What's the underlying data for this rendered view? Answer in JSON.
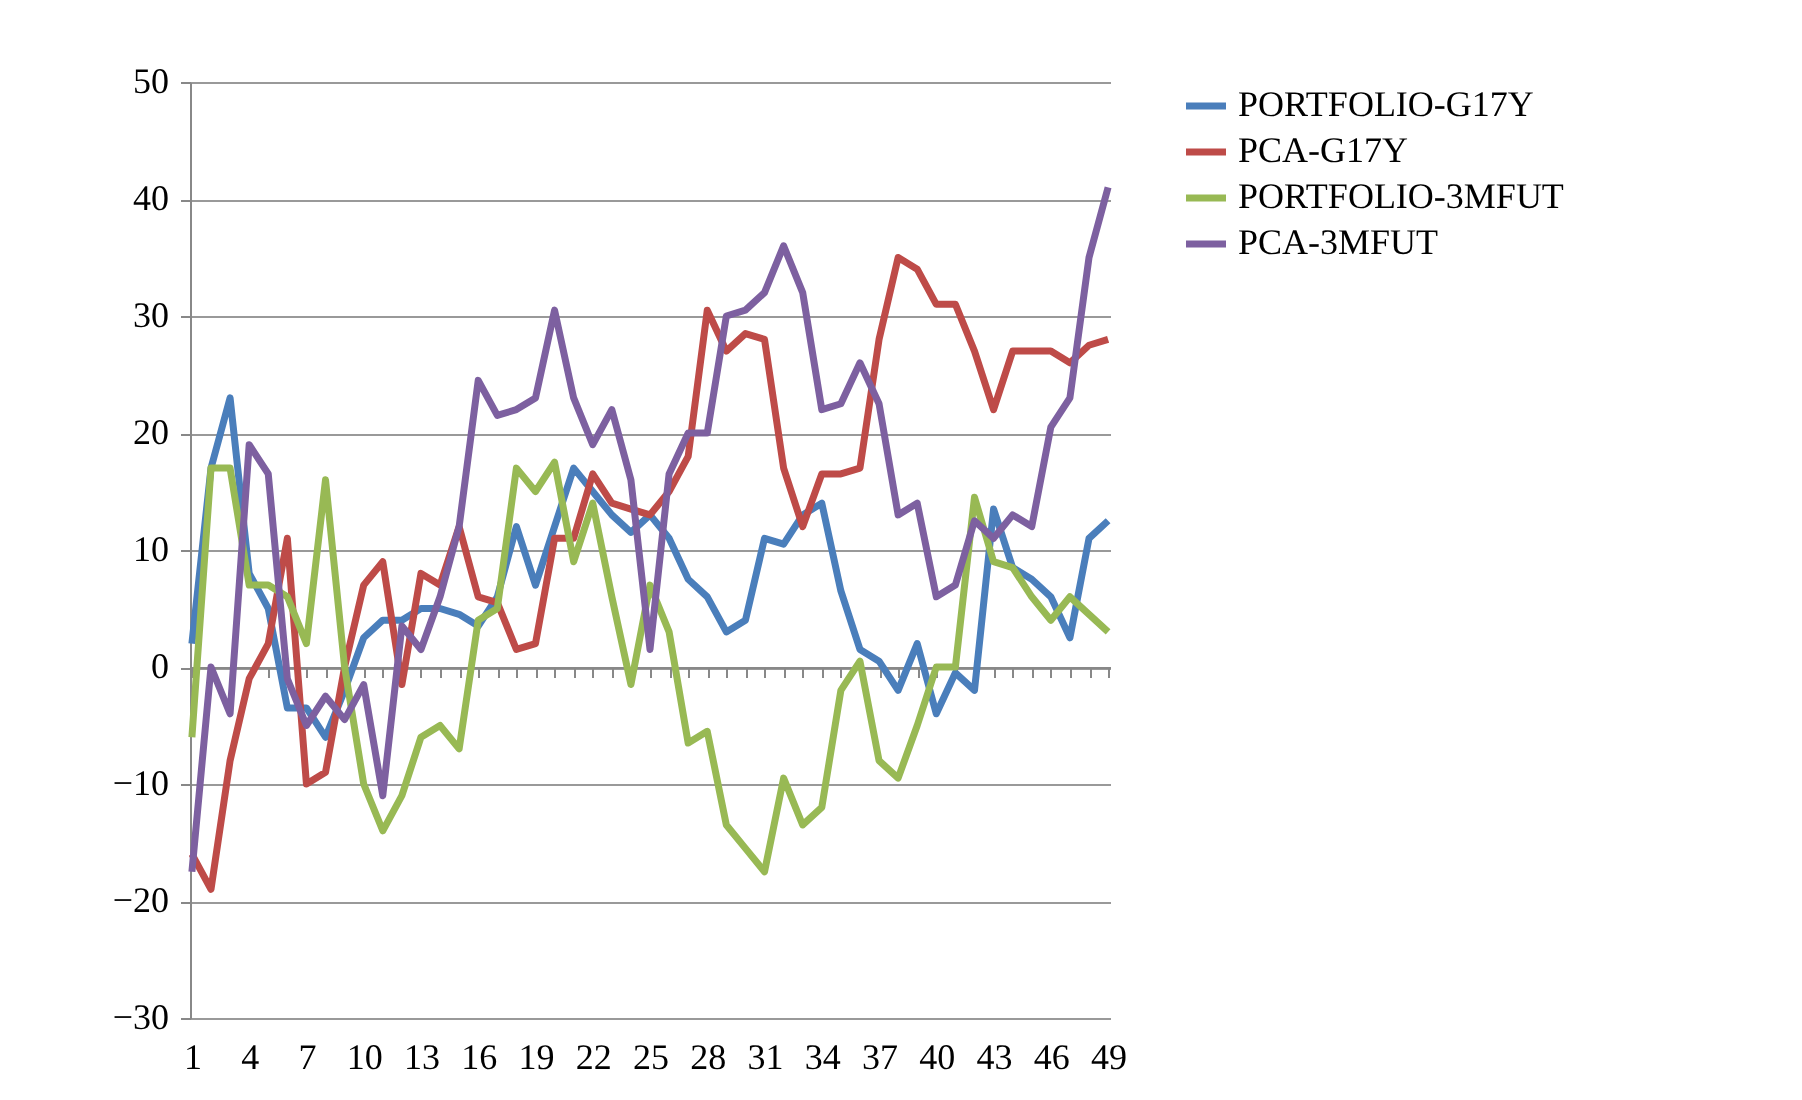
{
  "chart_data": {
    "type": "line",
    "categories": [
      "1",
      null,
      null,
      "4",
      null,
      null,
      "7",
      null,
      null,
      "10",
      null,
      null,
      "13",
      null,
      null,
      "16",
      null,
      null,
      "19",
      null,
      null,
      "22",
      null,
      null,
      "25",
      null,
      null,
      "28",
      null,
      null,
      "31",
      null,
      null,
      "34",
      null,
      null,
      "37",
      null,
      null,
      "40",
      null,
      null,
      "43",
      null,
      null,
      "46",
      null,
      null,
      "49"
    ],
    "series": [
      {
        "name": "PORTFOLIO-G17Y",
        "color": "#4a7ebb",
        "values": [
          2,
          17,
          23,
          8,
          5,
          -3.5,
          -3.5,
          -6,
          -2,
          2.5,
          4,
          4,
          5,
          5,
          4.5,
          3.5,
          6,
          12,
          7,
          12,
          17,
          15,
          13,
          11.5,
          13,
          11,
          7.5,
          6,
          3,
          4,
          11,
          10.5,
          13,
          14,
          6.5,
          1.5,
          0.5,
          -2,
          2,
          -4,
          -0.5,
          -2,
          13.5,
          8.5,
          7.5,
          6,
          2.5,
          11,
          12.5
        ]
      },
      {
        "name": "PCA-G17Y",
        "color": "#be4b48",
        "values": [
          -16,
          -19,
          -8,
          -1,
          2,
          11,
          -10,
          -9,
          0,
          7,
          9,
          -1.5,
          8,
          7,
          12,
          6,
          5.5,
          1.5,
          2,
          11,
          11,
          16.5,
          14,
          13.5,
          13,
          15,
          18,
          30.5,
          27,
          28.5,
          28,
          17,
          12,
          16.5,
          16.5,
          17,
          28,
          35,
          34,
          31,
          31,
          27,
          22,
          27,
          27,
          27,
          26,
          27.5,
          28
        ]
      },
      {
        "name": "PORTFOLIO-3MFUT",
        "color": "#98b954",
        "values": [
          -6,
          17,
          17,
          7,
          7,
          6,
          2,
          16,
          0,
          -10,
          -14,
          -11,
          -6,
          -5,
          -7,
          4,
          5,
          17,
          15,
          17.5,
          9,
          14,
          6,
          -1.5,
          7,
          3,
          -6.5,
          -5.5,
          -13.5,
          -15.5,
          -17.5,
          -9.5,
          -13.5,
          -12,
          -2,
          0.5,
          -8,
          -9.5,
          -5,
          0,
          0,
          14.5,
          9,
          8.5,
          6,
          4,
          6,
          4.5,
          3
        ]
      },
      {
        "name": "PCA-3MFUT",
        "color": "#7d60a0",
        "values": [
          -17.5,
          0,
          -4,
          19,
          16.5,
          -1,
          -5,
          -2.5,
          -4.5,
          -1.5,
          -11,
          3.5,
          1.5,
          6,
          12,
          24.5,
          21.5,
          22,
          23,
          30.5,
          23,
          19,
          22,
          16,
          1.5,
          16.5,
          20,
          20,
          30,
          30.5,
          32,
          36,
          32,
          22,
          22.5,
          26,
          22.5,
          13,
          14,
          6,
          7,
          12.5,
          11,
          13,
          12,
          20.5,
          23,
          35,
          41
        ]
      }
    ],
    "ylim": [
      -30,
      50
    ],
    "yticks": [
      -30,
      -20,
      -10,
      0,
      10,
      20,
      30,
      40,
      50
    ],
    "grid": "y",
    "legend": "right",
    "marker": "none",
    "line_style": "solid"
  }
}
